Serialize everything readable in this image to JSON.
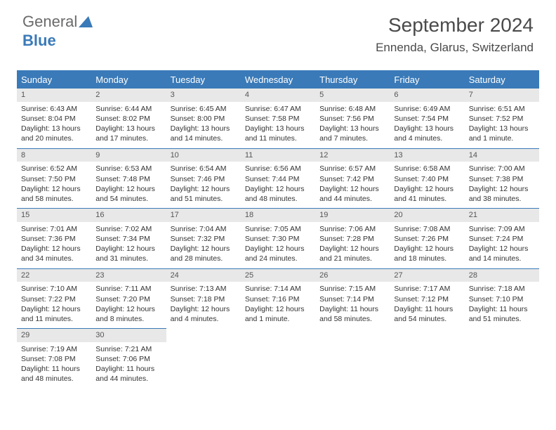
{
  "logo": {
    "text1": "General",
    "text2": "Blue"
  },
  "title": "September 2024",
  "subtitle": "Ennenda, Glarus, Switzerland",
  "colors": {
    "header_bg": "#3a7ab8",
    "header_text": "#ffffff",
    "daynum_bg": "#e8e8e8",
    "border": "#3a7ab8",
    "text": "#333333",
    "logo_gray": "#6a6a6a",
    "logo_blue": "#3a7ab8"
  },
  "weekdays": [
    "Sunday",
    "Monday",
    "Tuesday",
    "Wednesday",
    "Thursday",
    "Friday",
    "Saturday"
  ],
  "days": [
    {
      "n": "1",
      "sunrise": "6:43 AM",
      "sunset": "8:04 PM",
      "daylight": "13 hours and 20 minutes."
    },
    {
      "n": "2",
      "sunrise": "6:44 AM",
      "sunset": "8:02 PM",
      "daylight": "13 hours and 17 minutes."
    },
    {
      "n": "3",
      "sunrise": "6:45 AM",
      "sunset": "8:00 PM",
      "daylight": "13 hours and 14 minutes."
    },
    {
      "n": "4",
      "sunrise": "6:47 AM",
      "sunset": "7:58 PM",
      "daylight": "13 hours and 11 minutes."
    },
    {
      "n": "5",
      "sunrise": "6:48 AM",
      "sunset": "7:56 PM",
      "daylight": "13 hours and 7 minutes."
    },
    {
      "n": "6",
      "sunrise": "6:49 AM",
      "sunset": "7:54 PM",
      "daylight": "13 hours and 4 minutes."
    },
    {
      "n": "7",
      "sunrise": "6:51 AM",
      "sunset": "7:52 PM",
      "daylight": "13 hours and 1 minute."
    },
    {
      "n": "8",
      "sunrise": "6:52 AM",
      "sunset": "7:50 PM",
      "daylight": "12 hours and 58 minutes."
    },
    {
      "n": "9",
      "sunrise": "6:53 AM",
      "sunset": "7:48 PM",
      "daylight": "12 hours and 54 minutes."
    },
    {
      "n": "10",
      "sunrise": "6:54 AM",
      "sunset": "7:46 PM",
      "daylight": "12 hours and 51 minutes."
    },
    {
      "n": "11",
      "sunrise": "6:56 AM",
      "sunset": "7:44 PM",
      "daylight": "12 hours and 48 minutes."
    },
    {
      "n": "12",
      "sunrise": "6:57 AM",
      "sunset": "7:42 PM",
      "daylight": "12 hours and 44 minutes."
    },
    {
      "n": "13",
      "sunrise": "6:58 AM",
      "sunset": "7:40 PM",
      "daylight": "12 hours and 41 minutes."
    },
    {
      "n": "14",
      "sunrise": "7:00 AM",
      "sunset": "7:38 PM",
      "daylight": "12 hours and 38 minutes."
    },
    {
      "n": "15",
      "sunrise": "7:01 AM",
      "sunset": "7:36 PM",
      "daylight": "12 hours and 34 minutes."
    },
    {
      "n": "16",
      "sunrise": "7:02 AM",
      "sunset": "7:34 PM",
      "daylight": "12 hours and 31 minutes."
    },
    {
      "n": "17",
      "sunrise": "7:04 AM",
      "sunset": "7:32 PM",
      "daylight": "12 hours and 28 minutes."
    },
    {
      "n": "18",
      "sunrise": "7:05 AM",
      "sunset": "7:30 PM",
      "daylight": "12 hours and 24 minutes."
    },
    {
      "n": "19",
      "sunrise": "7:06 AM",
      "sunset": "7:28 PM",
      "daylight": "12 hours and 21 minutes."
    },
    {
      "n": "20",
      "sunrise": "7:08 AM",
      "sunset": "7:26 PM",
      "daylight": "12 hours and 18 minutes."
    },
    {
      "n": "21",
      "sunrise": "7:09 AM",
      "sunset": "7:24 PM",
      "daylight": "12 hours and 14 minutes."
    },
    {
      "n": "22",
      "sunrise": "7:10 AM",
      "sunset": "7:22 PM",
      "daylight": "12 hours and 11 minutes."
    },
    {
      "n": "23",
      "sunrise": "7:11 AM",
      "sunset": "7:20 PM",
      "daylight": "12 hours and 8 minutes."
    },
    {
      "n": "24",
      "sunrise": "7:13 AM",
      "sunset": "7:18 PM",
      "daylight": "12 hours and 4 minutes."
    },
    {
      "n": "25",
      "sunrise": "7:14 AM",
      "sunset": "7:16 PM",
      "daylight": "12 hours and 1 minute."
    },
    {
      "n": "26",
      "sunrise": "7:15 AM",
      "sunset": "7:14 PM",
      "daylight": "11 hours and 58 minutes."
    },
    {
      "n": "27",
      "sunrise": "7:17 AM",
      "sunset": "7:12 PM",
      "daylight": "11 hours and 54 minutes."
    },
    {
      "n": "28",
      "sunrise": "7:18 AM",
      "sunset": "7:10 PM",
      "daylight": "11 hours and 51 minutes."
    },
    {
      "n": "29",
      "sunrise": "7:19 AM",
      "sunset": "7:08 PM",
      "daylight": "11 hours and 48 minutes."
    },
    {
      "n": "30",
      "sunrise": "7:21 AM",
      "sunset": "7:06 PM",
      "daylight": "11 hours and 44 minutes."
    }
  ],
  "labels": {
    "sunrise": "Sunrise:",
    "sunset": "Sunset:",
    "daylight": "Daylight:"
  }
}
